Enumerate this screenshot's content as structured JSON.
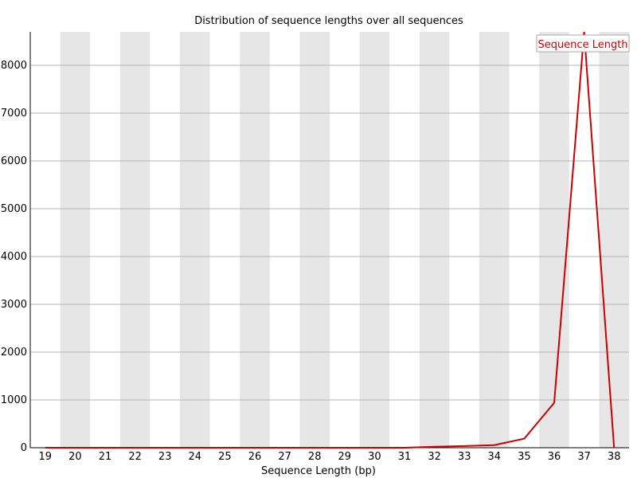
{
  "chart_data": {
    "type": "line",
    "title": "Distribution of sequence lengths over all sequences",
    "xlabel": "Sequence Length (bp)",
    "ylabel": "",
    "categories": [
      "19",
      "20",
      "21",
      "22",
      "23",
      "24",
      "25",
      "26",
      "27",
      "28",
      "29",
      "30",
      "31",
      "32",
      "33",
      "34",
      "35",
      "36",
      "37",
      "38"
    ],
    "yticks": [
      0,
      1000,
      2000,
      3000,
      4000,
      5000,
      6000,
      7000,
      8000
    ],
    "ylim": [
      0,
      8700
    ],
    "grid": true,
    "legend_position": "top-right",
    "series": [
      {
        "name": "Sequence Length",
        "color": "#cc0000",
        "values": [
          0,
          0,
          0,
          0,
          0,
          0,
          0,
          0,
          0,
          0,
          0,
          0,
          0,
          20,
          35,
          55,
          190,
          940,
          8700,
          0
        ]
      }
    ]
  }
}
